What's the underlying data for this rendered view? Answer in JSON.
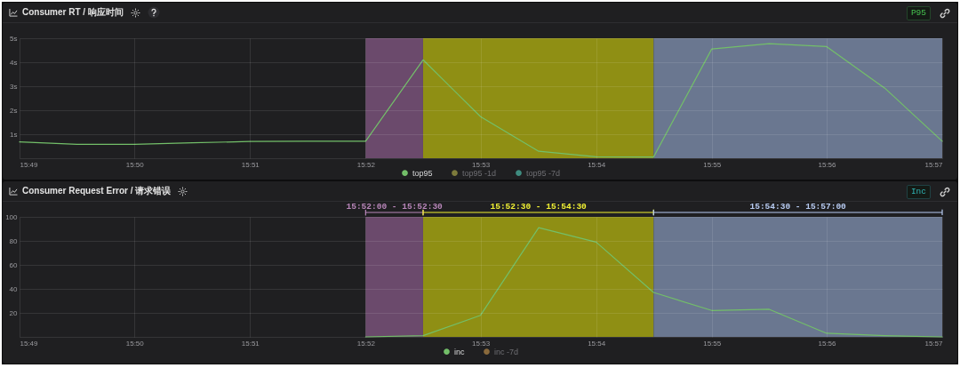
{
  "chart_data": [
    {
      "type": "line",
      "title": "Consumer RT / 响应时间",
      "annotations": [
        "P95"
      ],
      "x": [
        15.8167,
        15.825,
        15.8333,
        15.8417,
        15.85,
        15.8583,
        15.8667,
        15.875,
        15.8833,
        15.8917,
        15.9,
        15.9083,
        15.9167,
        15.925,
        15.9333,
        15.9417,
        15.95
      ],
      "series": [
        {
          "name": "top95",
          "color": "#73bf69",
          "values": [
            0.68,
            0.58,
            0.58,
            0.64,
            0.7,
            0.71,
            0.71,
            4.1,
            1.73,
            0.29,
            0.06,
            0.05,
            4.55,
            4.77,
            4.65,
            2.92,
            0.71
          ]
        },
        {
          "name": "top95 -1d",
          "color": "#7d7b3c",
          "values": [
            null,
            null,
            null,
            null,
            null,
            null,
            null,
            null,
            null,
            null,
            null,
            null,
            null,
            null,
            null,
            null,
            null
          ]
        },
        {
          "name": "top95 -7d",
          "color": "#3f8c80",
          "values": [
            null,
            null,
            null,
            null,
            null,
            null,
            null,
            null,
            null,
            null,
            null,
            null,
            null,
            null,
            null,
            null,
            null
          ]
        }
      ],
      "xlim": [
        15.8167,
        15.95
      ],
      "xticks": [
        {
          "value": 15.8167,
          "label": "15:49"
        },
        {
          "value": 15.8333,
          "label": "15:50"
        },
        {
          "value": 15.85,
          "label": "15:51"
        },
        {
          "value": 15.8667,
          "label": "15:52"
        },
        {
          "value": 15.8833,
          "label": "15:53"
        },
        {
          "value": 15.9,
          "label": "15:54"
        },
        {
          "value": 15.9167,
          "label": "15:55"
        },
        {
          "value": 15.9333,
          "label": "15:56"
        },
        {
          "value": 15.95,
          "label": "15:57"
        }
      ],
      "ylim": [
        0,
        5
      ],
      "yticks": [
        {
          "value": 0,
          "label": null
        },
        {
          "value": 1,
          "label": "1s"
        },
        {
          "value": 2,
          "label": "2s"
        },
        {
          "value": 3,
          "label": "3s"
        },
        {
          "value": 4,
          "label": "4s"
        },
        {
          "value": 5,
          "label": "5s"
        }
      ],
      "bands": [
        {
          "axis": "x",
          "from": 15.8667,
          "to": 15.875,
          "color": "#6b4a6c"
        },
        {
          "axis": "x",
          "from": 15.875,
          "to": 15.9083,
          "color": "#8f8f14"
        },
        {
          "axis": "x",
          "from": 15.9083,
          "to": 15.95,
          "color": "#6a7790"
        }
      ],
      "grid": true,
      "legend": "bottom"
    },
    {
      "type": "line",
      "title": "Consumer Request Error / 请求错误",
      "annotations": [
        "Inc"
      ],
      "x": [
        15.8667,
        15.875,
        15.8833,
        15.8917,
        15.9,
        15.9083,
        15.9167,
        15.925,
        15.9333,
        15.9417,
        15.95
      ],
      "series": [
        {
          "name": "inc",
          "color": "#73bf69",
          "values": [
            0,
            1,
            18,
            91,
            79,
            37,
            22,
            23,
            3,
            1,
            0
          ]
        },
        {
          "name": "inc -7d",
          "color": "#8a6a3c",
          "values": [
            null,
            null,
            null,
            null,
            null,
            null,
            null,
            null,
            null,
            null,
            null
          ]
        }
      ],
      "xlim": [
        15.8167,
        15.95
      ],
      "xticks": [
        {
          "value": 15.8167,
          "label": "15:49"
        },
        {
          "value": 15.8333,
          "label": "15:50"
        },
        {
          "value": 15.85,
          "label": "15:51"
        },
        {
          "value": 15.8667,
          "label": "15:52"
        },
        {
          "value": 15.8833,
          "label": "15:53"
        },
        {
          "value": 15.9,
          "label": "15:54"
        },
        {
          "value": 15.9167,
          "label": "15:55"
        },
        {
          "value": 15.9333,
          "label": "15:56"
        },
        {
          "value": 15.95,
          "label": "15:57"
        }
      ],
      "ylim": [
        0,
        100
      ],
      "yticks": [
        {
          "value": 0,
          "label": null
        },
        20,
        40,
        60,
        80,
        100
      ],
      "bands": [
        {
          "axis": "x",
          "from": 15.8667,
          "to": 15.875,
          "color": "#6b4a6c",
          "label": "15:52:00 - 15:52:30"
        },
        {
          "axis": "x",
          "from": 15.875,
          "to": 15.9083,
          "color": "#8f8f14",
          "label": "15:52:30 - 15:54:30"
        },
        {
          "axis": "x",
          "from": 15.9083,
          "to": 15.95,
          "color": "#6a7790",
          "label": "15:54:30 - 15:57:00"
        }
      ],
      "grid": true,
      "legend": "bottom"
    }
  ]
}
